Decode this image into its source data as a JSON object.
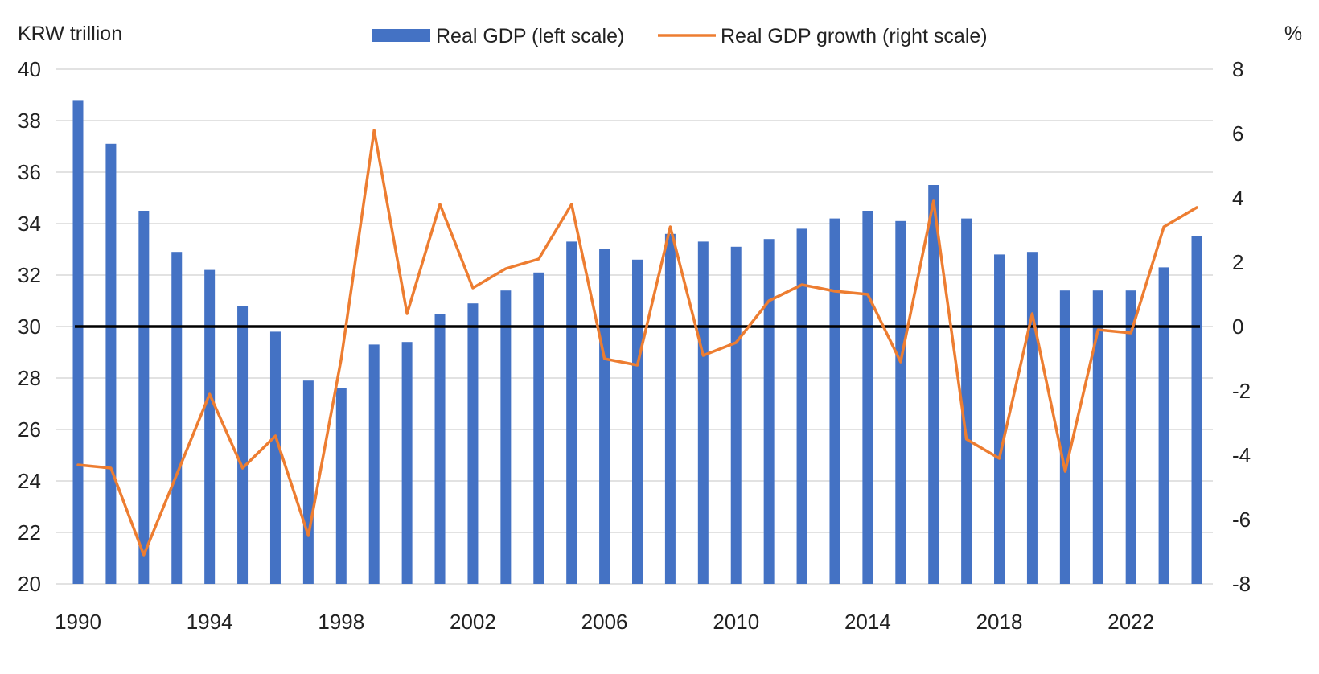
{
  "chart_data": {
    "type": "bar",
    "left_axis_unit": "KRW trillion",
    "right_axis_unit": "%",
    "legend": {
      "bar_label": "Real GDP (left scale)",
      "line_label": "Real GDP growth (right scale)",
      "placement": "top-center"
    },
    "colors": {
      "bar": "#4472C4",
      "line": "#ED7D31",
      "zero_line": "#000000",
      "grid": "#D9D9D9"
    },
    "x": [
      1990,
      1991,
      1992,
      1993,
      1994,
      1995,
      1996,
      1997,
      1998,
      1999,
      2000,
      2001,
      2002,
      2003,
      2004,
      2005,
      2006,
      2007,
      2008,
      2009,
      2010,
      2011,
      2012,
      2013,
      2014,
      2015,
      2016,
      2017,
      2018,
      2019,
      2020,
      2021,
      2022,
      2023,
      2024
    ],
    "x_tick_labels": [
      "1990",
      "1994",
      "1998",
      "2002",
      "2006",
      "2010",
      "2014",
      "2018",
      "2022"
    ],
    "y_left": {
      "ylim": [
        20,
        40
      ],
      "ticks": [
        "40",
        "38",
        "36",
        "34",
        "32",
        "30",
        "28",
        "26",
        "24",
        "22",
        "20"
      ]
    },
    "y_right": {
      "ylim": [
        -8,
        8
      ],
      "ticks": [
        "8",
        "6",
        "4",
        "2",
        "0",
        "-2",
        "-4",
        "-6",
        "-8"
      ]
    },
    "zero_reference_left": 30,
    "grid": true,
    "series": [
      {
        "name": "Real GDP (left scale)",
        "axis": "left",
        "kind": "bar",
        "values": [
          38.8,
          37.1,
          34.5,
          32.9,
          32.2,
          30.8,
          29.8,
          27.9,
          27.6,
          29.3,
          29.4,
          30.5,
          30.9,
          31.4,
          32.1,
          33.3,
          33.0,
          32.6,
          33.6,
          33.3,
          33.1,
          33.4,
          33.8,
          34.2,
          34.5,
          34.1,
          35.5,
          34.2,
          32.8,
          32.9,
          31.4,
          31.4,
          31.4,
          32.3,
          33.5
        ]
      },
      {
        "name": "Real GDP growth (right scale)",
        "axis": "right",
        "kind": "line",
        "values": [
          -4.3,
          -4.4,
          -7.1,
          -4.6,
          -2.1,
          -4.4,
          -3.4,
          -6.5,
          -1.0,
          6.1,
          0.4,
          3.8,
          1.2,
          1.8,
          2.1,
          3.8,
          -1.0,
          -1.2,
          3.1,
          -0.9,
          -0.5,
          0.8,
          1.3,
          1.1,
          1.0,
          -1.1,
          3.9,
          -3.5,
          -4.1,
          0.4,
          -4.5,
          -0.1,
          -0.2,
          3.1,
          3.7
        ]
      }
    ]
  }
}
